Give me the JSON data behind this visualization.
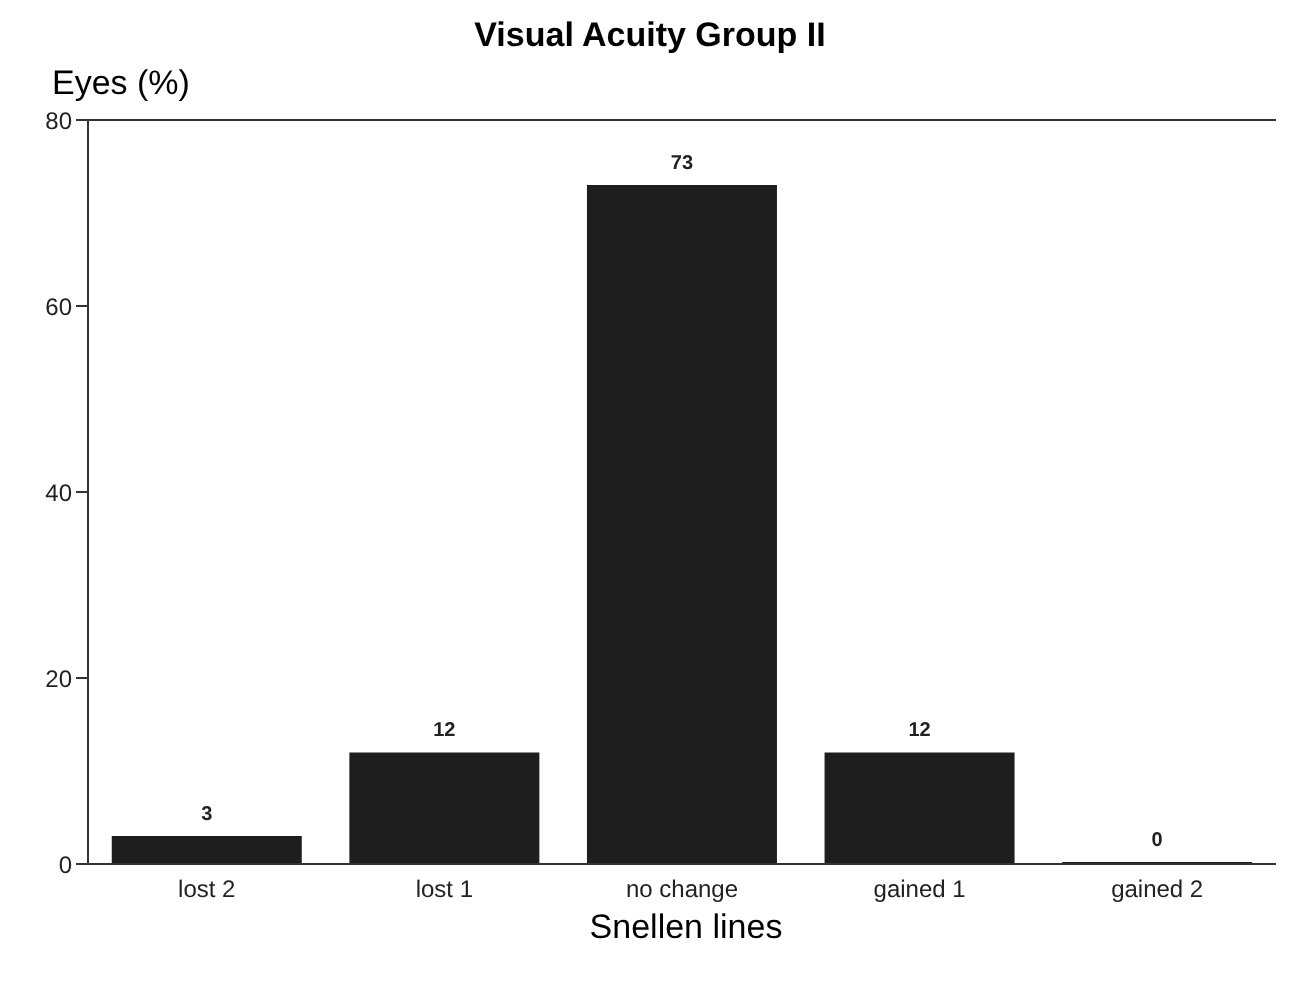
{
  "chart_data": {
    "type": "bar",
    "title": "Visual Acuity Group II",
    "ylabel": "Eyes (%)",
    "xlabel": "Snellen lines",
    "categories": [
      "lost 2",
      "lost 1",
      "no change",
      "gained 1",
      "gained 2"
    ],
    "values": [
      3,
      12,
      73,
      12,
      0
    ],
    "color": "#1e1e1e",
    "ylim": [
      0,
      80
    ],
    "yticks": [
      0,
      20,
      40,
      60,
      80
    ],
    "data_labels": true
  }
}
